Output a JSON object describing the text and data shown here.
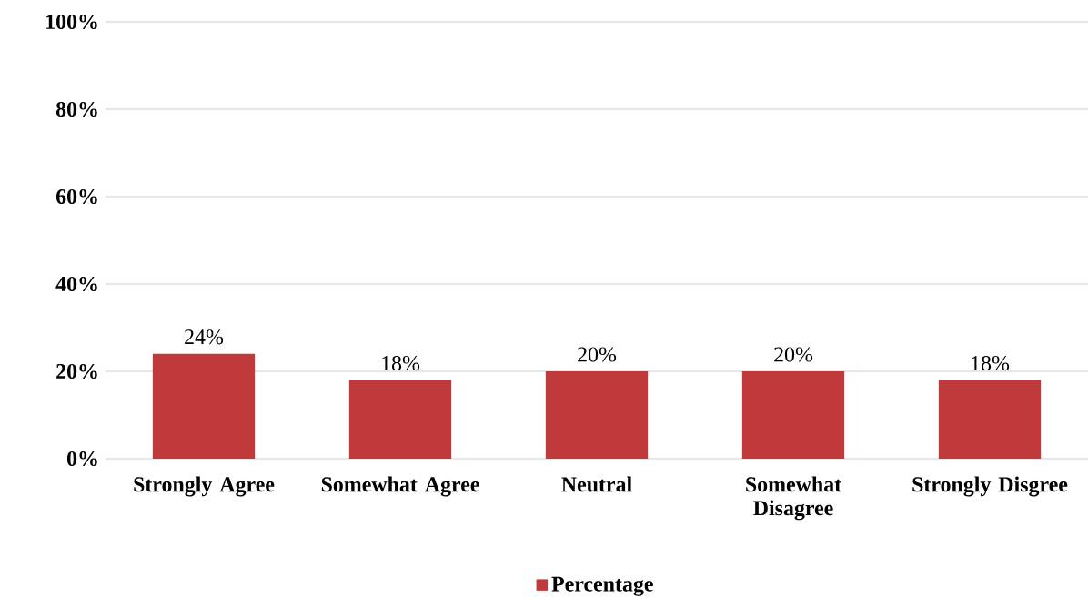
{
  "chart_data": {
    "type": "bar",
    "categories": [
      "Strongly Agree",
      "Somewhat Agree",
      "Neutral",
      "Somewhat Disagree",
      "Strongly Disgree"
    ],
    "series": [
      {
        "name": "Percentage",
        "color": "#c0393b",
        "values": [
          24,
          18,
          20,
          20,
          18
        ],
        "value_labels": [
          "24%",
          "18%",
          "20%",
          "20%",
          "18%"
        ]
      }
    ],
    "ylim": [
      0,
      100
    ],
    "yticks": [
      {
        "value": 0,
        "label": "0%"
      },
      {
        "value": 20,
        "label": "20%"
      },
      {
        "value": 40,
        "label": "40%"
      },
      {
        "value": 60,
        "label": "60%"
      },
      {
        "value": 80,
        "label": "80%"
      },
      {
        "value": 100,
        "label": "100%"
      }
    ],
    "grid": "y",
    "legend": "bottom"
  }
}
